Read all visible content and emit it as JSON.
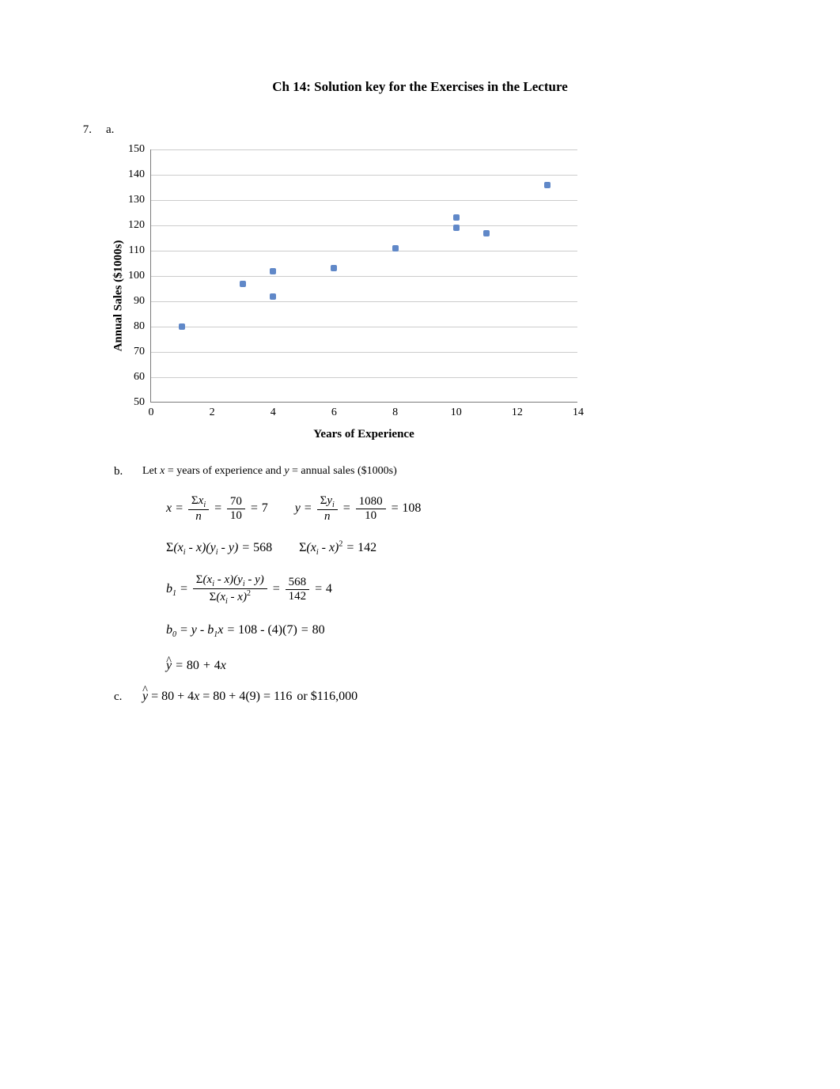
{
  "title": "Ch 14: Solution key for the Exercises in the Lecture",
  "q7": {
    "num": "7.",
    "a": "a."
  },
  "chart": {
    "type": "scatter",
    "ylabel": "Annual Sales ($1000s)",
    "xlabel": "Years of Experience",
    "xlim": [
      0,
      14
    ],
    "xtick_step": 2,
    "ylim": [
      50,
      150
    ],
    "ytick_step": 10,
    "xticks": [
      "0",
      "2",
      "4",
      "6",
      "8",
      "10",
      "12",
      "14"
    ],
    "yticks": [
      "50",
      "60",
      "70",
      "80",
      "90",
      "100",
      "110",
      "120",
      "130",
      "140",
      "150"
    ],
    "marker_color": "#6088c8",
    "grid_color": "#cccccc",
    "border_color": "#7a7a7a",
    "background_color": "#ffffff",
    "ytick_fontsize": 14,
    "xtick_fontsize": 14,
    "label_fontsize": 15,
    "marker_size": 8,
    "points": [
      {
        "x": 1,
        "y": 80
      },
      {
        "x": 3,
        "y": 97
      },
      {
        "x": 4,
        "y": 92
      },
      {
        "x": 4,
        "y": 102
      },
      {
        "x": 6,
        "y": 103
      },
      {
        "x": 8,
        "y": 111
      },
      {
        "x": 10,
        "y": 119
      },
      {
        "x": 10,
        "y": 123
      },
      {
        "x": 11,
        "y": 117
      },
      {
        "x": 13,
        "y": 136
      }
    ]
  },
  "partB": {
    "label": "b.",
    "text_before": "Let ",
    "x": "x",
    "text_mid1": " = years of experience and ",
    "y": "y",
    "text_mid2": " = annual sales ($1000s)"
  },
  "math": {
    "sxi": "Σ",
    "xi": "x",
    "i": "i",
    "n": "n",
    "xbar_num": "70",
    "xbar_den": "10",
    "xbar_val": "7",
    "syi": "Σ",
    "yi": "y",
    "ybar_num": "1080",
    "ybar_den": "10",
    "ybar_val": "108",
    "sxy": "568",
    "sxx": "142",
    "b1_num": "568",
    "b1_den": "142",
    "b1_val": "4",
    "b0_y": "108",
    "b0_b1": "(4)(7)",
    "b0_val": "80",
    "eq": "=",
    "minus": " - ",
    "plus": "+ ",
    "yhat_eq": "80 ",
    "yhat_b1": "4",
    "line_b0": "b",
    "zero": "0",
    "one": "1"
  },
  "partC": {
    "label": "c.",
    "expr_lhs": "= 80 + 4",
    "expr_mid": " = 80 + 4(9) = 116",
    "text_or": "or $116,000"
  }
}
